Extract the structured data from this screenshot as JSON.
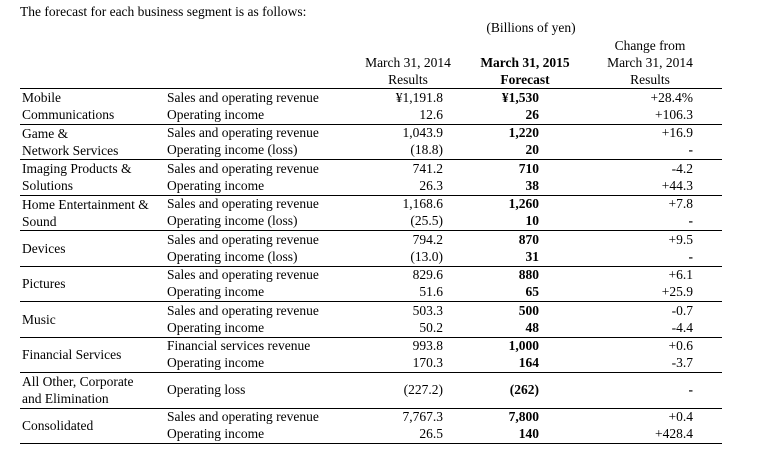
{
  "title": "The forecast for each business segment is as follows:",
  "unit_note": "(Billions of yen)",
  "columns": {
    "results_2014": [
      "March 31, 2014",
      "Results"
    ],
    "forecast_2015": [
      "March 31, 2015",
      "Forecast"
    ],
    "change": [
      "Change from",
      "March 31, 2014",
      "Results"
    ]
  },
  "segments": [
    {
      "name": "Mobile Communications",
      "name_lines": [
        "Mobile",
        "Communications"
      ],
      "rows": [
        {
          "item": "Sales and operating revenue",
          "results": "¥1,191.8",
          "forecast": "¥1,530",
          "change": "+28.4%"
        },
        {
          "item": "Operating income",
          "results": "12.6",
          "forecast": "26",
          "change": "+106.3"
        }
      ]
    },
    {
      "name": "Game & Network Services",
      "name_lines": [
        "Game &",
        "Network Services"
      ],
      "rows": [
        {
          "item": "Sales and operating revenue",
          "results": "1,043.9",
          "forecast": "1,220",
          "change": "+16.9"
        },
        {
          "item": "Operating income (loss)",
          "results": "(18.8)",
          "forecast": "20",
          "change": "-"
        }
      ]
    },
    {
      "name": "Imaging Products & Solutions",
      "name_lines": [
        "Imaging Products &",
        "Solutions"
      ],
      "rows": [
        {
          "item": "Sales and operating revenue",
          "results": "741.2",
          "forecast": "710",
          "change": "-4.2"
        },
        {
          "item": "Operating income",
          "results": "26.3",
          "forecast": "38",
          "change": "+44.3"
        }
      ]
    },
    {
      "name": "Home Entertainment & Sound",
      "name_lines": [
        "Home Entertainment &",
        "Sound"
      ],
      "rows": [
        {
          "item": "Sales and operating revenue",
          "results": "1,168.6",
          "forecast": "1,260",
          "change": "+7.8"
        },
        {
          "item": "Operating income (loss)",
          "results": "(25.5)",
          "forecast": "10",
          "change": "-"
        }
      ]
    },
    {
      "name": "Devices",
      "name_lines": [
        "Devices"
      ],
      "rows": [
        {
          "item": "Sales and operating revenue",
          "results": "794.2",
          "forecast": "870",
          "change": "+9.5"
        },
        {
          "item": "Operating income (loss)",
          "results": "(13.0)",
          "forecast": "31",
          "change": "-"
        }
      ]
    },
    {
      "name": "Pictures",
      "name_lines": [
        "Pictures"
      ],
      "rows": [
        {
          "item": "Sales and operating revenue",
          "results": "829.6",
          "forecast": "880",
          "change": "+6.1"
        },
        {
          "item": "Operating income",
          "results": "51.6",
          "forecast": "65",
          "change": "+25.9"
        }
      ]
    },
    {
      "name": "Music",
      "name_lines": [
        "Music"
      ],
      "rows": [
        {
          "item": "Sales and operating revenue",
          "results": "503.3",
          "forecast": "500",
          "change": "-0.7"
        },
        {
          "item": "Operating income",
          "results": "50.2",
          "forecast": "48",
          "change": "-4.4"
        }
      ]
    },
    {
      "name": "Financial Services",
      "name_lines": [
        "Financial Services"
      ],
      "rows": [
        {
          "item": "Financial services revenue",
          "results": "993.8",
          "forecast": "1,000",
          "change": "+0.6"
        },
        {
          "item": "Operating income",
          "results": "170.3",
          "forecast": "164",
          "change": "-3.7"
        }
      ]
    },
    {
      "name": "All Other, Corporate and Elimination",
      "name_lines": [
        "All Other, Corporate",
        "and Elimination"
      ],
      "rows": [
        {
          "item": "Operating loss",
          "results": "(227.2)",
          "forecast": "(262)",
          "change": "-"
        }
      ]
    },
    {
      "name": "Consolidated",
      "name_lines": [
        "Consolidated"
      ],
      "rows": [
        {
          "item": "Sales and operating revenue",
          "results": "7,767.3",
          "forecast": "7,800",
          "change": "+0.4"
        },
        {
          "item": "Operating income",
          "results": "26.5",
          "forecast": "140",
          "change": "+428.4"
        }
      ]
    }
  ]
}
